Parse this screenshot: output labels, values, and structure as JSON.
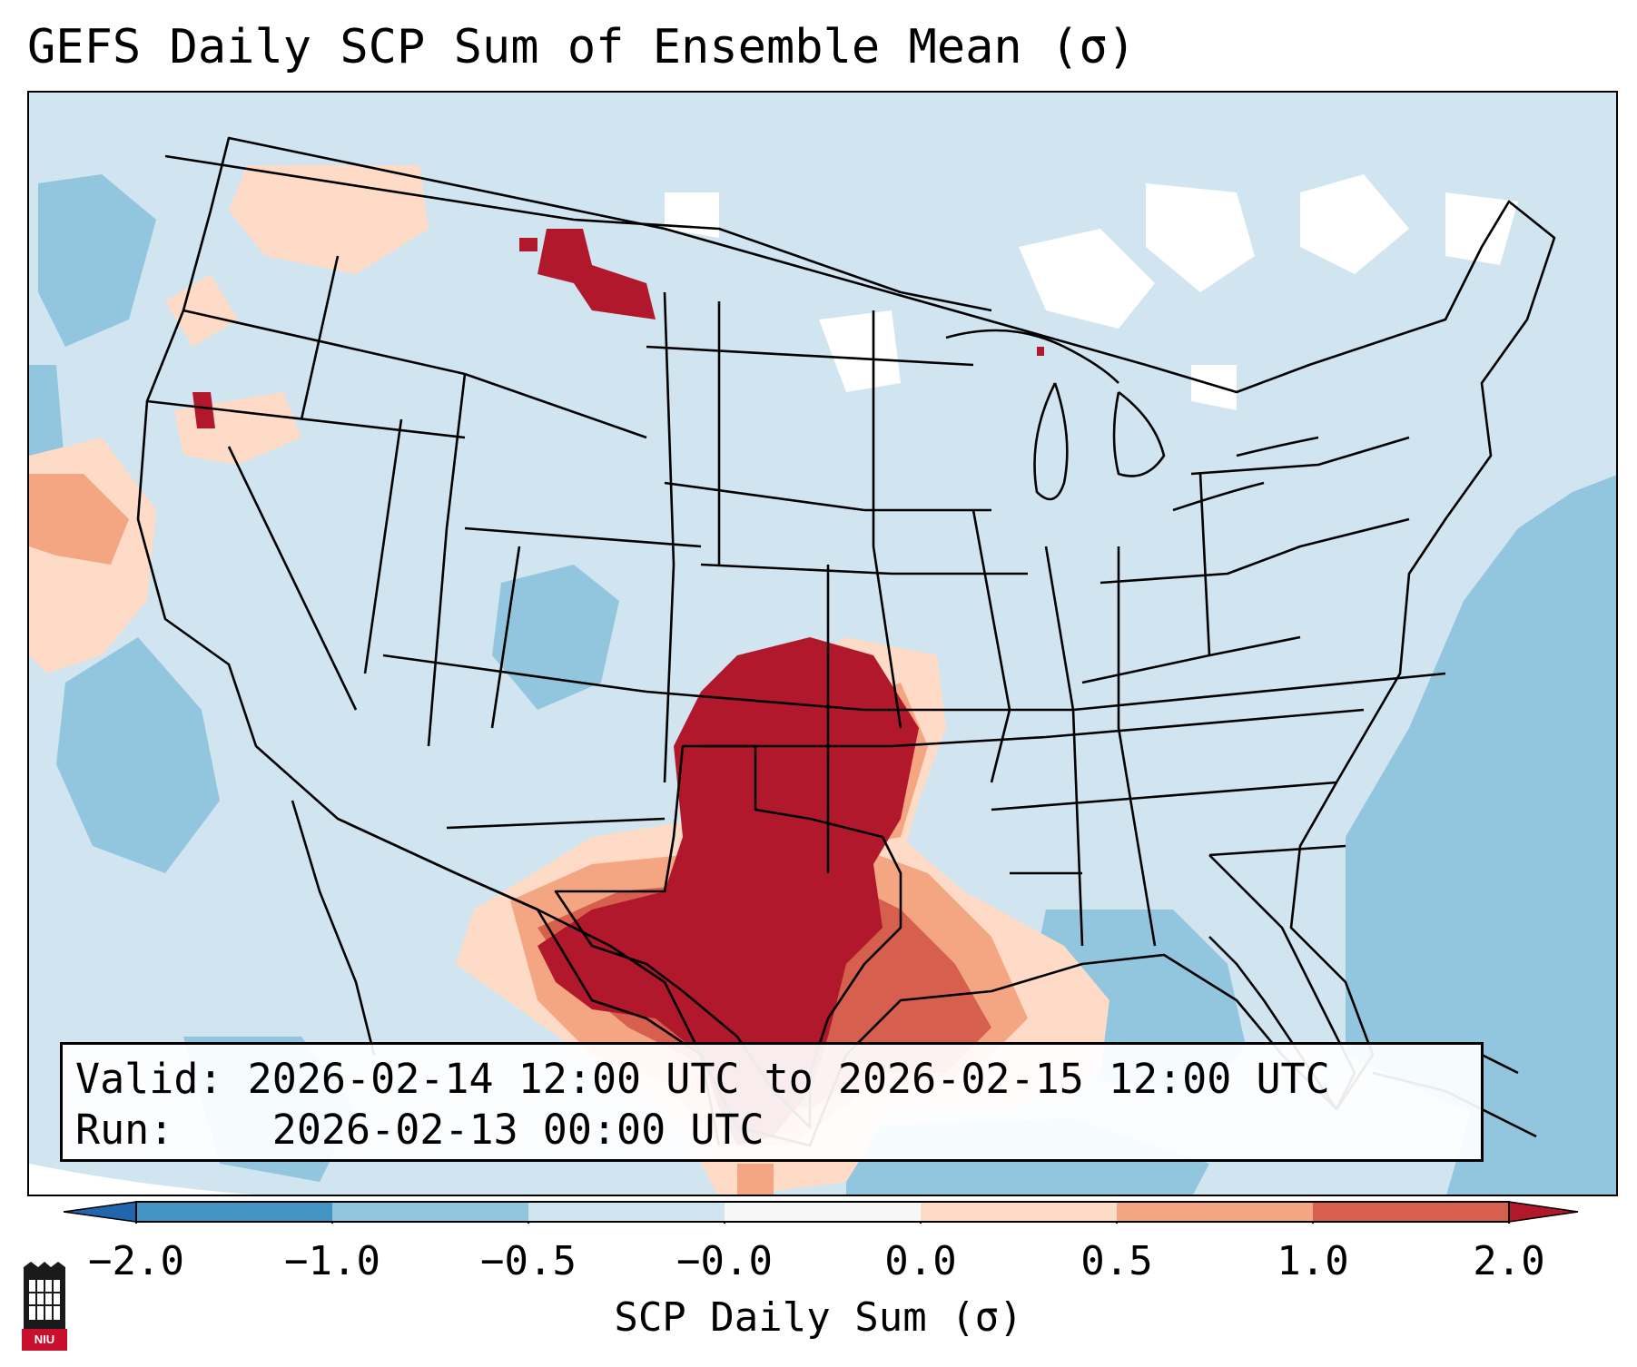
{
  "title": "GEFS Daily SCP Sum of Ensemble Mean (σ)",
  "info": {
    "valid_label": "Valid:",
    "valid_value": "2026-02-14 12:00 UTC to 2026-02-15 12:00 UTC",
    "run_label": "Run:",
    "run_value": "2026-02-13 00:00 UTC"
  },
  "colorbar": {
    "label": "SCP Daily Sum (σ)",
    "ticks": [
      "−2.0",
      "−1.0",
      "−0.5",
      "−0.0",
      "0.0",
      "0.5",
      "1.0",
      "2.0"
    ],
    "colors": [
      "#4393c3",
      "#92c5de",
      "#d1e5f0",
      "#f7f7f7",
      "#fddbc7",
      "#f4a582",
      "#d6604d",
      "#b2182b"
    ],
    "extend_low": "#2166ac",
    "extend_high": "#b2182b"
  },
  "logo": {
    "text": "NIU"
  },
  "map": {
    "region": "Continental United States",
    "features": [
      "state-borders",
      "country-borders",
      "coastlines",
      "great-lakes"
    ],
    "anomaly_max_region": "Texas / Oklahoma",
    "anomaly_max_value_sigma": 2.0
  }
}
